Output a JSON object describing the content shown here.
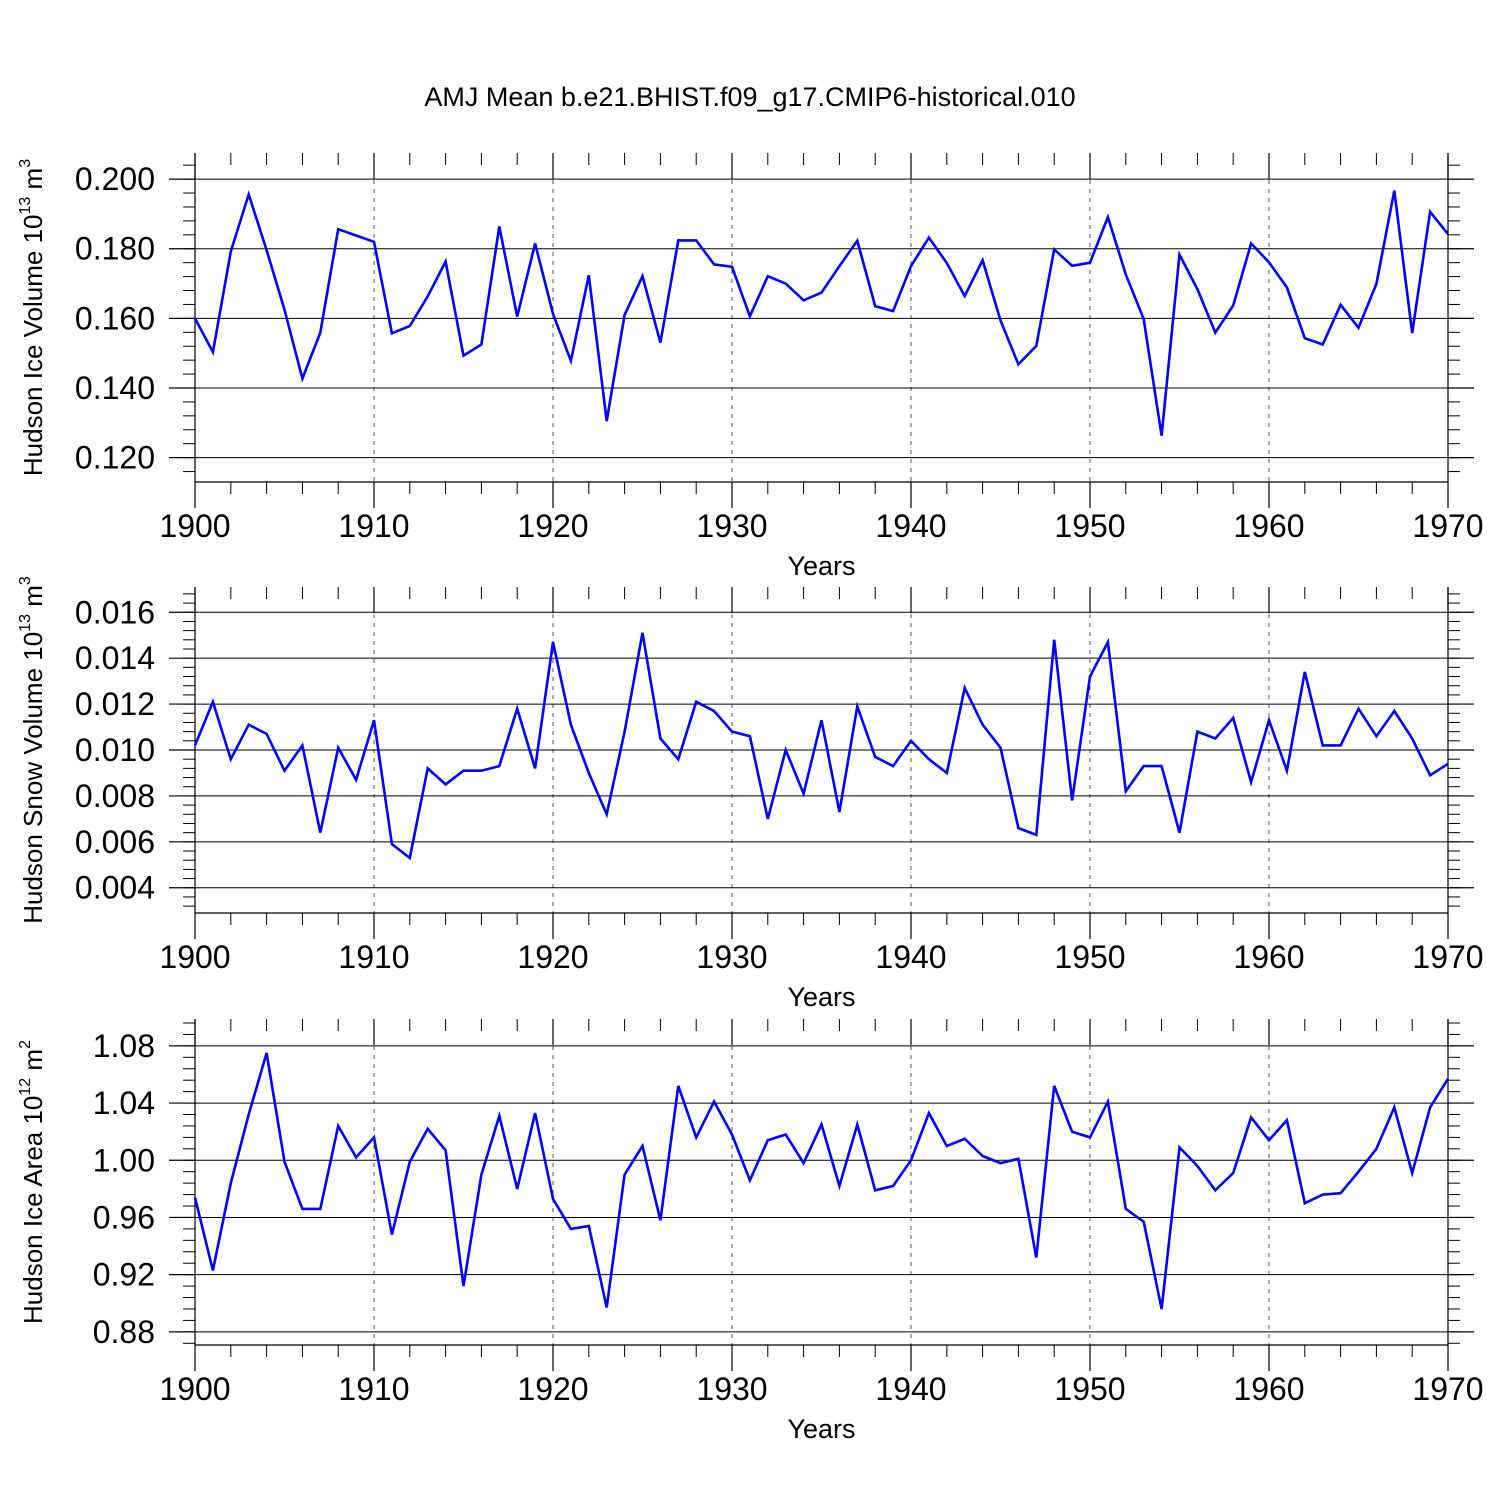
{
  "figure": {
    "title": "AMJ Mean b.e21.BHIST.f09_g17.CMIP6-historical.010",
    "line_color": "#0000ff",
    "axis_color": "#000000",
    "grid_color": "#555555"
  },
  "chart_data": [
    {
      "type": "line",
      "name": "hudson-ice-volume",
      "xlabel": "Years",
      "ylabel": {
        "text": "Hudson Ice Volume 10",
        "exp": "13",
        "unit": " m",
        "unit_exp": "3"
      },
      "xlim": [
        1900,
        1970
      ],
      "ylim": [
        0.113,
        0.2075
      ],
      "x_ticks": [
        1900,
        1910,
        1920,
        1930,
        1940,
        1950,
        1960,
        1970
      ],
      "x_tick_labels": [
        "1900",
        "1910",
        "1920",
        "1930",
        "1940",
        "1950",
        "1960",
        "1970"
      ],
      "y_ticks": [
        0.12,
        0.14,
        0.16,
        0.18,
        0.2
      ],
      "y_tick_labels": [
        "0.120",
        "0.140",
        "0.160",
        "0.180",
        "0.200"
      ],
      "y_minor_step": 0.004,
      "x_grid": [
        1910,
        1920,
        1930,
        1940,
        1950,
        1960
      ],
      "series": [
        {
          "name": "Hudson Ice Volume",
          "x_start": 1900,
          "values": [
            0.16,
            0.1503,
            0.1792,
            0.1956,
            0.1796,
            0.1625,
            0.1427,
            0.1559,
            0.1856,
            0.1838,
            0.182,
            0.1557,
            0.1578,
            0.1663,
            0.1763,
            0.1493,
            0.1525,
            0.1864,
            0.1605,
            0.1815,
            0.1613,
            0.1478,
            0.1724,
            0.1305,
            0.161,
            0.1721,
            0.153,
            0.1824,
            0.1824,
            0.1755,
            0.1748,
            0.1606,
            0.1721,
            0.17,
            0.1652,
            0.1674,
            0.175,
            0.1823,
            0.1635,
            0.1621,
            0.175,
            0.1832,
            0.1759,
            0.1664,
            0.1767,
            0.1594,
            0.1468,
            0.1521,
            0.1798,
            0.1751,
            0.176,
            0.1891,
            0.1726,
            0.1598,
            0.1263,
            0.1783,
            0.1684,
            0.1559,
            0.1637,
            0.1815,
            0.1761,
            0.1689,
            0.1543,
            0.1525,
            0.1639,
            0.1573,
            0.1699,
            0.1967,
            0.1558,
            0.1906,
            0.1842
          ]
        }
      ]
    },
    {
      "type": "line",
      "name": "hudson-snow-volume",
      "xlabel": "Years",
      "ylabel": {
        "text": "Hudson Snow Volume 10",
        "exp": "13",
        "unit": " m",
        "unit_exp": "3"
      },
      "xlim": [
        1900,
        1970
      ],
      "ylim": [
        0.0029,
        0.0171
      ],
      "x_ticks": [
        1900,
        1910,
        1920,
        1930,
        1940,
        1950,
        1960,
        1970
      ],
      "x_tick_labels": [
        "1900",
        "1910",
        "1920",
        "1930",
        "1940",
        "1950",
        "1960",
        "1970"
      ],
      "y_ticks": [
        0.004,
        0.006,
        0.008,
        0.01,
        0.012,
        0.014,
        0.016
      ],
      "y_tick_labels": [
        "0.004",
        "0.006",
        "0.008",
        "0.010",
        "0.012",
        "0.014",
        "0.016"
      ],
      "y_minor_step": 0.0004,
      "x_grid": [
        1910,
        1920,
        1930,
        1940,
        1950,
        1960
      ],
      "series": [
        {
          "name": "Hudson Snow Volume",
          "x_start": 1900,
          "values": [
            0.0102,
            0.0121,
            0.0096,
            0.0111,
            0.0107,
            0.0091,
            0.0102,
            0.0064,
            0.0101,
            0.0087,
            0.0113,
            0.0059,
            0.0053,
            0.0092,
            0.0085,
            0.0091,
            0.0091,
            0.0093,
            0.0118,
            0.0092,
            0.0147,
            0.0111,
            0.009,
            0.0072,
            0.0108,
            0.0151,
            0.0105,
            0.0096,
            0.0121,
            0.0117,
            0.0108,
            0.0106,
            0.007,
            0.01,
            0.0081,
            0.0113,
            0.0073,
            0.0119,
            0.0097,
            0.0093,
            0.0104,
            0.0096,
            0.009,
            0.0127,
            0.0111,
            0.0101,
            0.0066,
            0.0063,
            0.0148,
            0.0078,
            0.0132,
            0.0147,
            0.0082,
            0.0093,
            0.0093,
            0.0064,
            0.0108,
            0.0105,
            0.0114,
            0.0086,
            0.0113,
            0.0091,
            0.0134,
            0.0102,
            0.0102,
            0.0118,
            0.0106,
            0.0117,
            0.0105,
            0.0089,
            0.0094
          ]
        }
      ]
    },
    {
      "type": "line",
      "name": "hudson-ice-area",
      "xlabel": "Years",
      "ylabel": {
        "text": "Hudson Ice Area 10",
        "exp": "12",
        "unit": " m",
        "unit_exp": "2"
      },
      "xlim": [
        1900,
        1970
      ],
      "ylim": [
        0.8708,
        1.0988
      ],
      "x_ticks": [
        1900,
        1910,
        1920,
        1930,
        1940,
        1950,
        1960,
        1970
      ],
      "x_tick_labels": [
        "1900",
        "1910",
        "1920",
        "1930",
        "1940",
        "1950",
        "1960",
        "1970"
      ],
      "y_ticks": [
        0.88,
        0.92,
        0.96,
        1.0,
        1.04,
        1.08
      ],
      "y_tick_labels": [
        "0.88",
        "0.92",
        "0.96",
        "1.00",
        "1.04",
        "1.08"
      ],
      "y_minor_step": 0.008,
      "x_grid": [
        1910,
        1920,
        1930,
        1940,
        1950,
        1960
      ],
      "series": [
        {
          "name": "Hudson Ice Area",
          "x_start": 1900,
          "values": [
            0.974,
            0.923,
            0.984,
            1.032,
            1.075,
            0.999,
            0.966,
            0.966,
            1.024,
            1.002,
            1.016,
            0.948,
            0.999,
            1.022,
            1.007,
            0.912,
            0.99,
            1.031,
            0.98,
            1.033,
            0.973,
            0.952,
            0.954,
            0.897,
            0.99,
            1.01,
            0.958,
            1.052,
            1.016,
            1.041,
            1.018,
            0.986,
            1.014,
            1.018,
            0.998,
            1.025,
            0.982,
            1.025,
            0.979,
            0.982,
            1.0,
            1.033,
            1.01,
            1.015,
            1.003,
            0.998,
            1.001,
            0.932,
            1.052,
            1.02,
            1.016,
            1.041,
            0.966,
            0.957,
            0.896,
            1.009,
            0.996,
            0.979,
            0.991,
            1.03,
            1.014,
            1.028,
            0.97,
            0.976,
            0.977,
            0.992,
            1.008,
            1.037,
            0.991,
            1.037,
            1.057
          ]
        }
      ]
    }
  ]
}
